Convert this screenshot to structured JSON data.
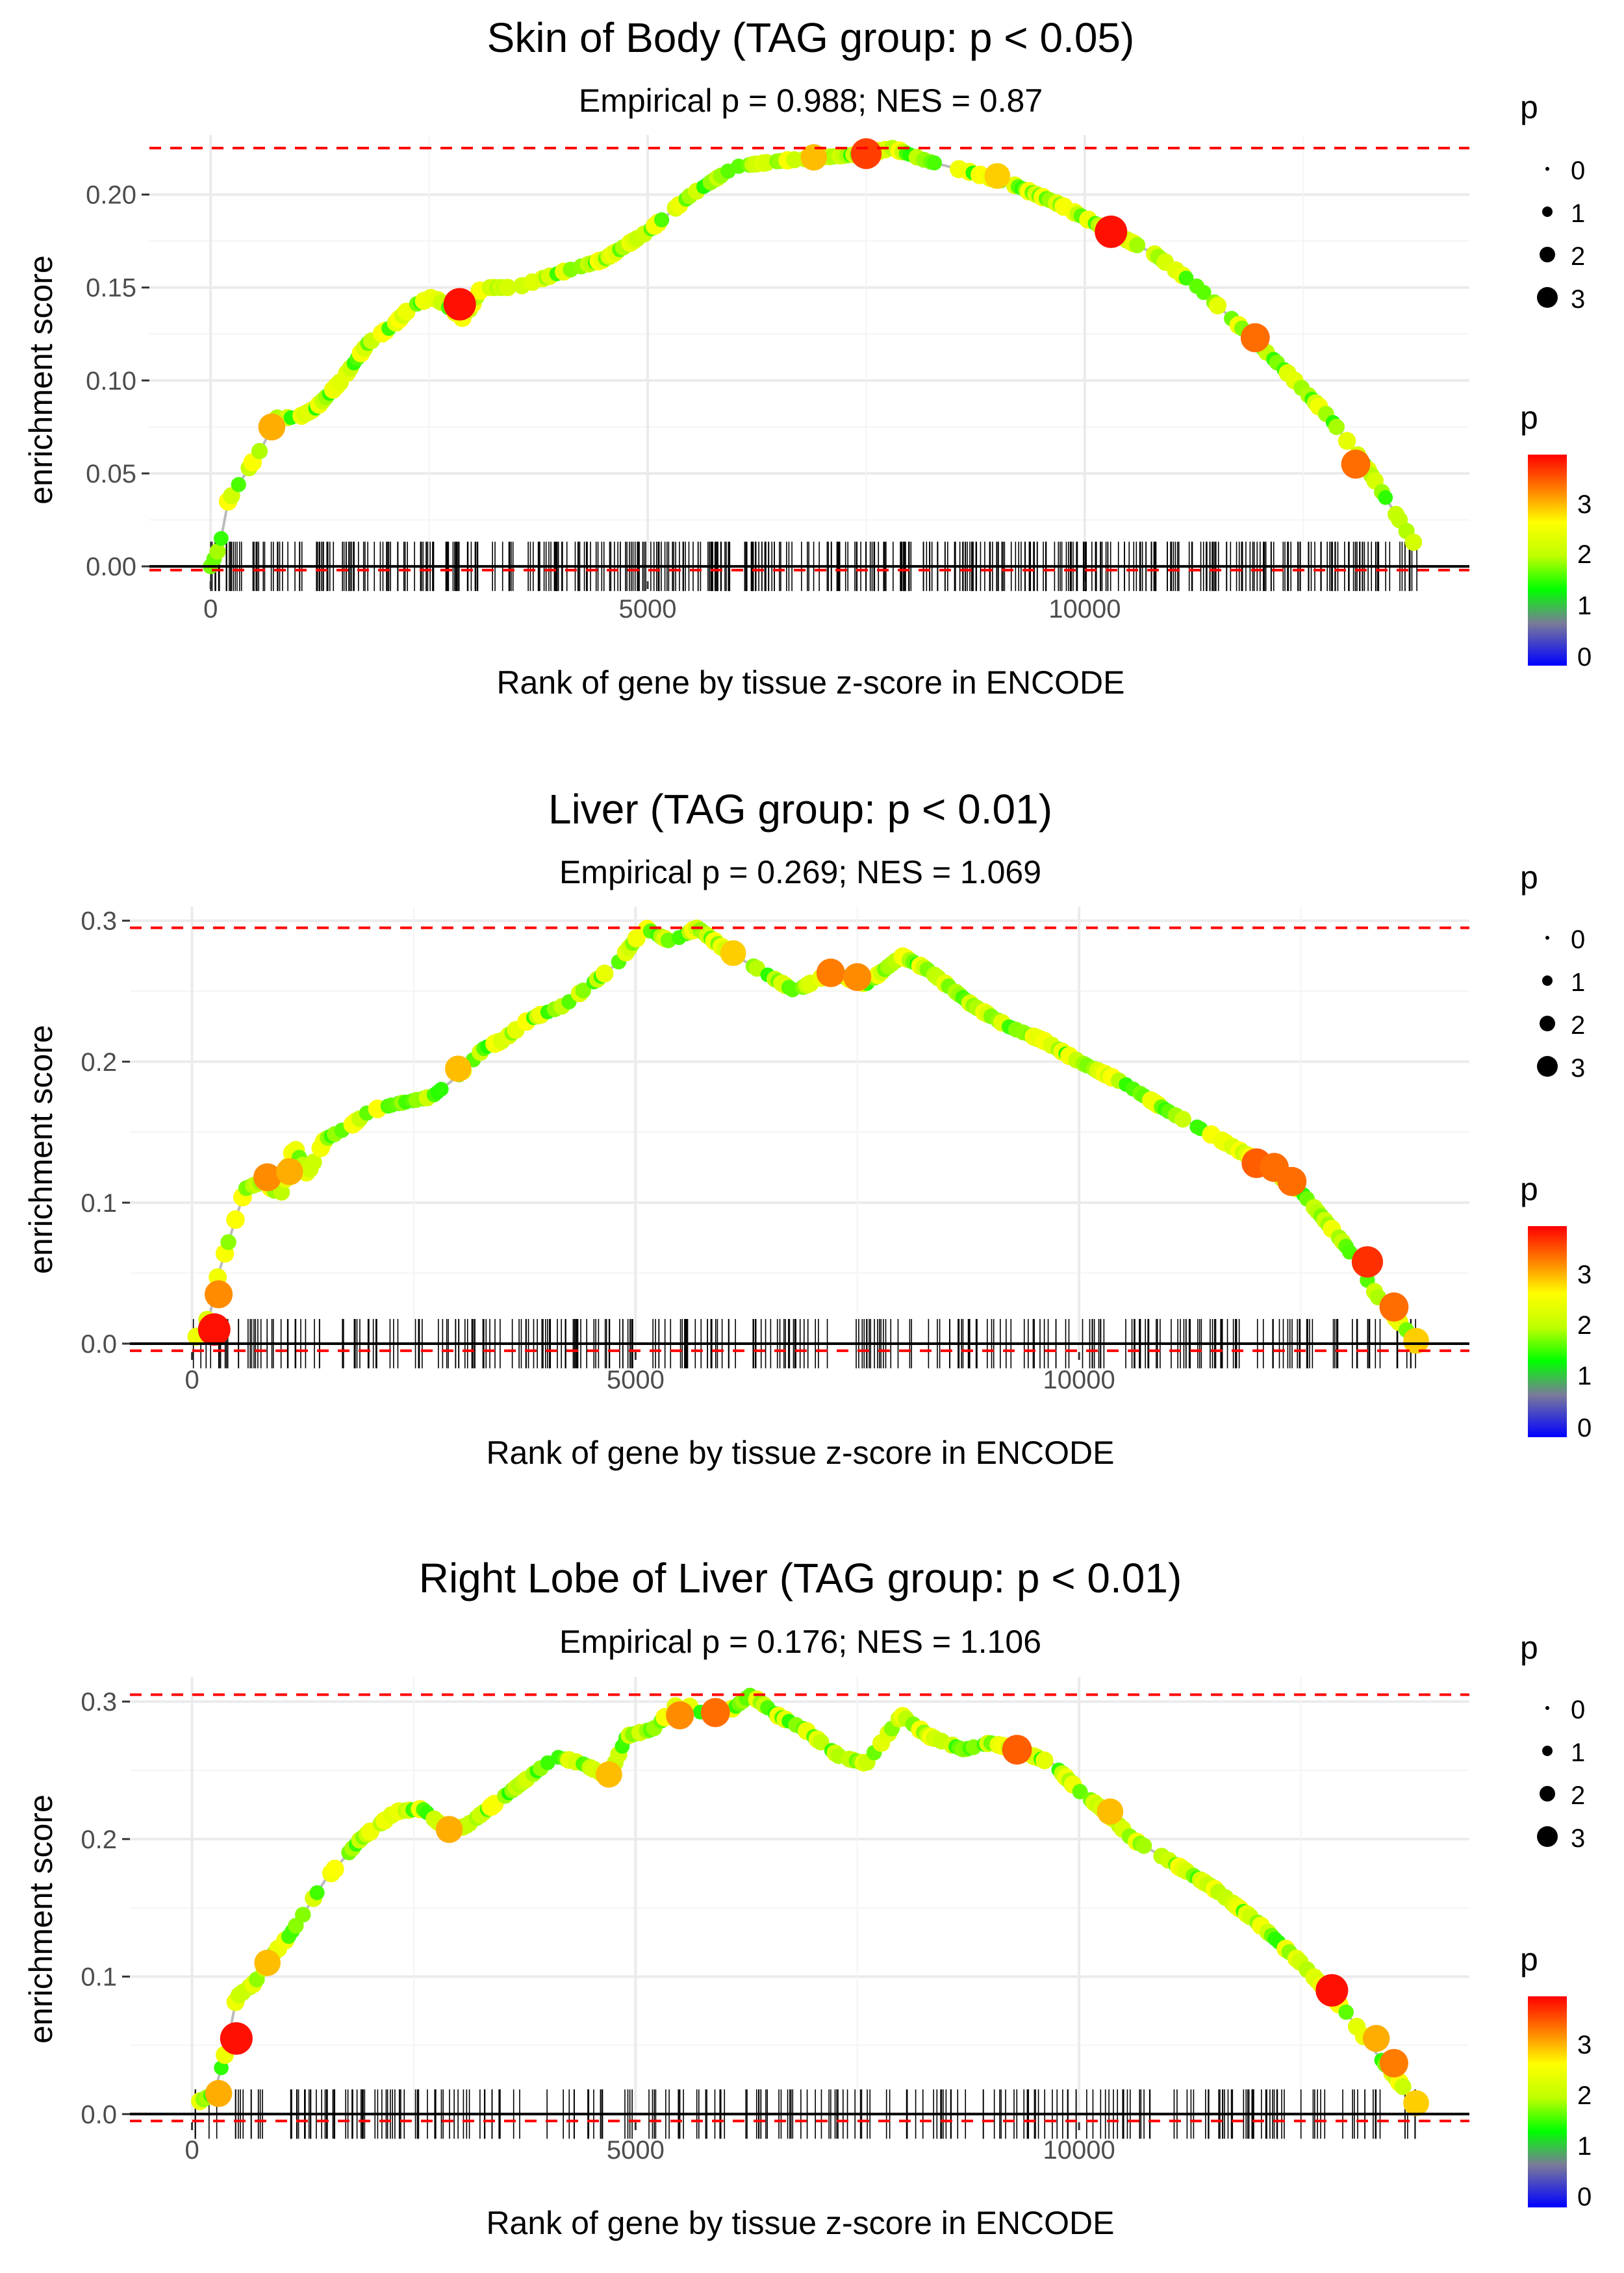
{
  "chart_data": [
    {
      "type": "scatter",
      "title": "Skin of Body (TAG group: p < 0.05)",
      "subtitle": "Empirical p = 0.988; NES = 0.87",
      "xlabel": "Rank of gene by tissue z-score in ENCODE",
      "ylabel": "enrichment score",
      "xlim": [
        -700,
        14400
      ],
      "ylim": [
        -0.008,
        0.232
      ],
      "xticks": [
        0,
        5000,
        10000
      ],
      "xtick_labels": [
        "0",
        "5000",
        "10000"
      ],
      "yticks": [
        0,
        0.05,
        0.1,
        0.15,
        0.2
      ],
      "ytick_labels": [
        "0.00",
        "0.05",
        "0.10",
        "0.15",
        "0.20"
      ],
      "es_max": 0.225,
      "es_min": -0.002,
      "n_genes": 13800,
      "n_ticks": 480,
      "curve": [
        [
          0,
          0
        ],
        [
          100,
          0.01
        ],
        [
          200,
          0.035
        ],
        [
          400,
          0.05
        ],
        [
          600,
          0.065
        ],
        [
          750,
          0.08
        ],
        [
          1000,
          0.08
        ],
        [
          1200,
          0.085
        ],
        [
          1500,
          0.1
        ],
        [
          1800,
          0.12
        ],
        [
          2100,
          0.13
        ],
        [
          2300,
          0.14
        ],
        [
          2550,
          0.145
        ],
        [
          2900,
          0.133
        ],
        [
          3100,
          0.15
        ],
        [
          3500,
          0.15
        ],
        [
          4000,
          0.158
        ],
        [
          4500,
          0.165
        ],
        [
          5000,
          0.18
        ],
        [
          5500,
          0.2
        ],
        [
          6000,
          0.215
        ],
        [
          6500,
          0.218
        ],
        [
          7000,
          0.22
        ],
        [
          7500,
          0.222
        ],
        [
          7800,
          0.225
        ],
        [
          8200,
          0.218
        ],
        [
          8700,
          0.212
        ],
        [
          9200,
          0.205
        ],
        [
          9700,
          0.195
        ],
        [
          10300,
          0.18
        ],
        [
          10800,
          0.168
        ],
        [
          11300,
          0.15
        ],
        [
          11800,
          0.128
        ],
        [
          12300,
          0.105
        ],
        [
          12800,
          0.08
        ],
        [
          13200,
          0.055
        ],
        [
          13600,
          0.025
        ],
        [
          13800,
          0.01
        ]
      ],
      "highlights": [
        [
          2850,
          0.141,
          3.8
        ],
        [
          7500,
          0.222,
          3.5
        ],
        [
          10300,
          0.18,
          3.8
        ],
        [
          11950,
          0.123,
          3.2
        ],
        [
          13100,
          0.055,
          3.2
        ],
        [
          700,
          0.075,
          2.8
        ],
        [
          6900,
          0.22,
          2.7
        ],
        [
          9000,
          0.21,
          2.6
        ]
      ],
      "series": [
        {
          "name": "Enrichment score"
        },
        {
          "name": "Gene rank ticks"
        }
      ],
      "legend_size": {
        "title": "p",
        "labels": [
          "0",
          "1",
          "2",
          "3"
        ]
      },
      "legend_color": {
        "title": "p",
        "labels": [
          "3",
          "2",
          "1",
          "0"
        ]
      }
    },
    {
      "type": "scatter",
      "title": "Liver (TAG group: p < 0.01)",
      "subtitle": "Empirical p = 0.269; NES = 1.069",
      "xlabel": "Rank of gene by tissue z-score in ENCODE",
      "ylabel": "enrichment score",
      "xlim": [
        -700,
        14400
      ],
      "ylim": [
        -0.006,
        0.31
      ],
      "xticks": [
        0,
        5000,
        10000
      ],
      "xtick_labels": [
        "0",
        "5000",
        "10000"
      ],
      "yticks": [
        0,
        0.1,
        0.2,
        0.3
      ],
      "ytick_labels": [
        "0.0",
        "0.1",
        "0.2",
        "0.3"
      ],
      "es_max": 0.295,
      "es_min": -0.005,
      "n_genes": 13800,
      "n_ticks": 300,
      "curve": [
        [
          50,
          0.005
        ],
        [
          200,
          0.02
        ],
        [
          300,
          0.05
        ],
        [
          450,
          0.08
        ],
        [
          600,
          0.11
        ],
        [
          800,
          0.115
        ],
        [
          1000,
          0.105
        ],
        [
          1150,
          0.14
        ],
        [
          1300,
          0.12
        ],
        [
          1500,
          0.145
        ],
        [
          1800,
          0.155
        ],
        [
          2000,
          0.165
        ],
        [
          2300,
          0.17
        ],
        [
          2700,
          0.175
        ],
        [
          3000,
          0.19
        ],
        [
          3300,
          0.21
        ],
        [
          3500,
          0.215
        ],
        [
          3800,
          0.23
        ],
        [
          4200,
          0.24
        ],
        [
          4500,
          0.255
        ],
        [
          4800,
          0.27
        ],
        [
          5100,
          0.295
        ],
        [
          5400,
          0.285
        ],
        [
          5700,
          0.295
        ],
        [
          6000,
          0.28
        ],
        [
          6400,
          0.265
        ],
        [
          6800,
          0.25
        ],
        [
          7200,
          0.263
        ],
        [
          7600,
          0.255
        ],
        [
          8000,
          0.275
        ],
        [
          8300,
          0.265
        ],
        [
          8800,
          0.24
        ],
        [
          9200,
          0.225
        ],
        [
          9600,
          0.215
        ],
        [
          10000,
          0.2
        ],
        [
          10500,
          0.185
        ],
        [
          11000,
          0.165
        ],
        [
          11500,
          0.148
        ],
        [
          12000,
          0.13
        ],
        [
          12500,
          0.108
        ],
        [
          13000,
          0.07
        ],
        [
          13400,
          0.03
        ],
        [
          13800,
          0.002
        ]
      ],
      "highlights": [
        [
          250,
          0.01,
          3.8
        ],
        [
          300,
          0.035,
          3.0
        ],
        [
          850,
          0.118,
          3.0
        ],
        [
          1100,
          0.122,
          2.8
        ],
        [
          3000,
          0.195,
          2.7
        ],
        [
          6100,
          0.277,
          2.6
        ],
        [
          7200,
          0.263,
          3.1
        ],
        [
          7500,
          0.26,
          3.0
        ],
        [
          12000,
          0.128,
          3.3
        ],
        [
          12200,
          0.125,
          3.2
        ],
        [
          12400,
          0.115,
          3.2
        ],
        [
          13250,
          0.058,
          3.6
        ],
        [
          13550,
          0.026,
          3.2
        ],
        [
          13800,
          0.002,
          2.6
        ]
      ],
      "series": [
        {
          "name": "Enrichment score"
        },
        {
          "name": "Gene rank ticks"
        }
      ],
      "legend_size": {
        "title": "p",
        "labels": [
          "0",
          "1",
          "2",
          "3"
        ]
      },
      "legend_color": {
        "title": "p",
        "labels": [
          "3",
          "2",
          "1",
          "0"
        ]
      }
    },
    {
      "type": "scatter",
      "title": "Right Lobe of Liver (TAG group: p < 0.01)",
      "subtitle": "Empirical p = 0.176; NES = 1.106",
      "xlabel": "Rank of gene by tissue z-score in ENCODE",
      "ylabel": "enrichment score",
      "xlim": [
        -700,
        14400
      ],
      "ylim": [
        -0.006,
        0.318
      ],
      "xticks": [
        0,
        5000,
        10000
      ],
      "xtick_labels": [
        "0",
        "5000",
        "10000"
      ],
      "yticks": [
        0,
        0.1,
        0.2,
        0.3
      ],
      "ytick_labels": [
        "0.0",
        "0.1",
        "0.2",
        "0.3"
      ],
      "es_max": 0.305,
      "es_min": -0.005,
      "n_genes": 13800,
      "n_ticks": 260,
      "curve": [
        [
          50,
          0.008
        ],
        [
          250,
          0.015
        ],
        [
          400,
          0.05
        ],
        [
          500,
          0.085
        ],
        [
          700,
          0.095
        ],
        [
          900,
          0.115
        ],
        [
          1100,
          0.13
        ],
        [
          1300,
          0.15
        ],
        [
          1500,
          0.17
        ],
        [
          1700,
          0.185
        ],
        [
          1900,
          0.2
        ],
        [
          2100,
          0.21
        ],
        [
          2300,
          0.22
        ],
        [
          2600,
          0.222
        ],
        [
          2900,
          0.205
        ],
        [
          3100,
          0.21
        ],
        [
          3400,
          0.225
        ],
        [
          3800,
          0.245
        ],
        [
          4100,
          0.26
        ],
        [
          4400,
          0.255
        ],
        [
          4700,
          0.245
        ],
        [
          4900,
          0.275
        ],
        [
          5200,
          0.28
        ],
        [
          5500,
          0.3
        ],
        [
          5800,
          0.29
        ],
        [
          6100,
          0.295
        ],
        [
          6300,
          0.305
        ],
        [
          6600,
          0.29
        ],
        [
          6900,
          0.28
        ],
        [
          7300,
          0.26
        ],
        [
          7600,
          0.255
        ],
        [
          8000,
          0.29
        ],
        [
          8300,
          0.275
        ],
        [
          8700,
          0.265
        ],
        [
          9000,
          0.27
        ],
        [
          9300,
          0.265
        ],
        [
          9700,
          0.255
        ],
        [
          10000,
          0.235
        ],
        [
          10300,
          0.22
        ],
        [
          10600,
          0.2
        ],
        [
          11000,
          0.185
        ],
        [
          11500,
          0.165
        ],
        [
          12000,
          0.14
        ],
        [
          12500,
          0.11
        ],
        [
          13000,
          0.075
        ],
        [
          13400,
          0.04
        ],
        [
          13800,
          0.008
        ]
      ],
      "highlights": [
        [
          500,
          0.055,
          3.8
        ],
        [
          300,
          0.015,
          2.8
        ],
        [
          850,
          0.11,
          2.7
        ],
        [
          2900,
          0.207,
          2.8
        ],
        [
          4700,
          0.247,
          2.7
        ],
        [
          5500,
          0.29,
          3.0
        ],
        [
          5900,
          0.292,
          3.2
        ],
        [
          9300,
          0.265,
          3.3
        ],
        [
          10350,
          0.22,
          2.7
        ],
        [
          12850,
          0.09,
          3.8
        ],
        [
          13350,
          0.055,
          2.8
        ],
        [
          13550,
          0.037,
          3.1
        ],
        [
          13800,
          0.008,
          2.6
        ]
      ],
      "series": [
        {
          "name": "Enrichment score"
        },
        {
          "name": "Gene rank ticks"
        }
      ],
      "legend_size": {
        "title": "p",
        "labels": [
          "0",
          "1",
          "2",
          "3"
        ]
      },
      "legend_color": {
        "title": "p",
        "labels": [
          "3",
          "2",
          "1",
          "0"
        ]
      }
    }
  ],
  "colors": {
    "gradient": [
      "#ff0000",
      "#ff8c00",
      "#ffff00",
      "#bfff00",
      "#00ff00",
      "#7a7a9a",
      "#0000ff"
    ],
    "ref_line": "#ff0000",
    "curve_line": "#bbbbbb",
    "grid": "#ebebeb"
  }
}
